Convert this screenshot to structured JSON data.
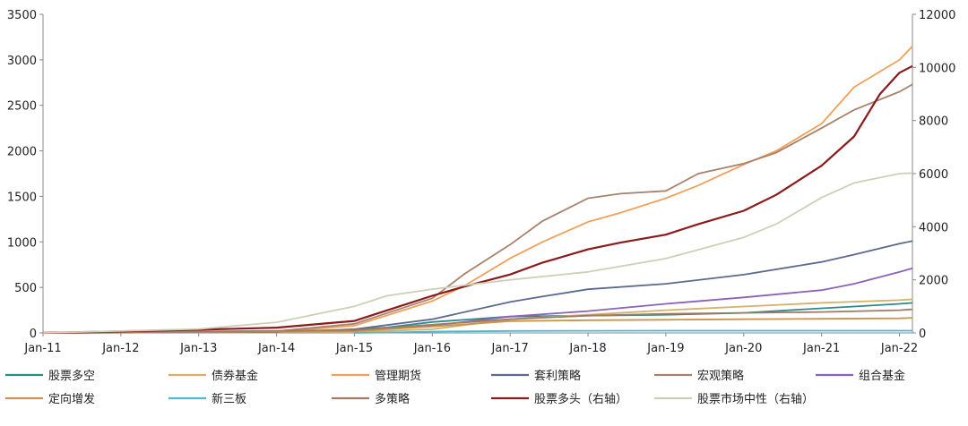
{
  "chart_data": {
    "type": "line",
    "title": "",
    "xlabel": "",
    "ylabel": "",
    "ylabel_right": "",
    "x_ticks": [
      "Jan-11",
      "Jan-12",
      "Jan-13",
      "Jan-14",
      "Jan-15",
      "Jan-16",
      "Jan-17",
      "Jan-18",
      "Jan-19",
      "Jan-20",
      "Jan-21",
      "Jan-22"
    ],
    "xlim": [
      "2011-01",
      "2022-03"
    ],
    "ylim_left": [
      0,
      3500
    ],
    "ylim_right": [
      0,
      12000
    ],
    "y_ticks_left": [
      "0",
      "500",
      "1000",
      "1500",
      "2000",
      "2500",
      "3000",
      "3500"
    ],
    "y_ticks_right": [
      "0",
      "2000",
      "4000",
      "6000",
      "8000",
      "10000",
      "12000"
    ],
    "legend_position": "bottom",
    "series": [
      {
        "name": "股票多空",
        "axis": "left",
        "color": "#2e8a8a",
        "points": [
          [
            "2011-01",
            2
          ],
          [
            "2014-06",
            10
          ],
          [
            "2015-06",
            60
          ],
          [
            "2016-01",
            120
          ],
          [
            "2017-01",
            180
          ],
          [
            "2018-01",
            190
          ],
          [
            "2019-01",
            200
          ],
          [
            "2020-01",
            220
          ],
          [
            "2021-01",
            270
          ],
          [
            "2021-06",
            290
          ],
          [
            "2022-01",
            320
          ],
          [
            "2022-03",
            330
          ]
        ]
      },
      {
        "name": "债券基金",
        "axis": "left",
        "color": "#d4b06a",
        "points": [
          [
            "2011-01",
            2
          ],
          [
            "2015-01",
            10
          ],
          [
            "2016-01",
            40
          ],
          [
            "2017-01",
            150
          ],
          [
            "2018-01",
            200
          ],
          [
            "2019-01",
            250
          ],
          [
            "2020-01",
            290
          ],
          [
            "2021-01",
            330
          ],
          [
            "2022-01",
            360
          ],
          [
            "2022-03",
            370
          ]
        ]
      },
      {
        "name": "管理期货",
        "axis": "left",
        "color": "#f0a05a",
        "points": [
          [
            "2011-01",
            0
          ],
          [
            "2014-01",
            10
          ],
          [
            "2015-01",
            80
          ],
          [
            "2016-01",
            350
          ],
          [
            "2016-06",
            520
          ],
          [
            "2017-01",
            820
          ],
          [
            "2017-06",
            1000
          ],
          [
            "2018-01",
            1220
          ],
          [
            "2018-06",
            1320
          ],
          [
            "2019-01",
            1480
          ],
          [
            "2019-06",
            1620
          ],
          [
            "2020-01",
            1850
          ],
          [
            "2020-06",
            2000
          ],
          [
            "2021-01",
            2300
          ],
          [
            "2021-06",
            2700
          ],
          [
            "2022-01",
            3000
          ],
          [
            "2022-03",
            3150
          ]
        ]
      },
      {
        "name": "套利策略",
        "axis": "left",
        "color": "#5a6a8e",
        "points": [
          [
            "2011-01",
            0
          ],
          [
            "2014-01",
            10
          ],
          [
            "2015-01",
            40
          ],
          [
            "2016-01",
            150
          ],
          [
            "2017-01",
            340
          ],
          [
            "2017-06",
            400
          ],
          [
            "2018-01",
            480
          ],
          [
            "2019-01",
            540
          ],
          [
            "2020-01",
            640
          ],
          [
            "2021-01",
            780
          ],
          [
            "2021-06",
            860
          ],
          [
            "2022-01",
            980
          ],
          [
            "2022-03",
            1010
          ]
        ]
      },
      {
        "name": "宏观策略",
        "axis": "left",
        "color": "#a8826a",
        "points": [
          [
            "2011-01",
            0
          ],
          [
            "2014-01",
            20
          ],
          [
            "2015-01",
            100
          ],
          [
            "2016-01",
            380
          ],
          [
            "2016-06",
            650
          ],
          [
            "2017-01",
            970
          ],
          [
            "2017-06",
            1230
          ],
          [
            "2018-01",
            1480
          ],
          [
            "2018-06",
            1530
          ],
          [
            "2019-01",
            1560
          ],
          [
            "2019-06",
            1750
          ],
          [
            "2020-01",
            1860
          ],
          [
            "2020-06",
            1980
          ],
          [
            "2021-01",
            2250
          ],
          [
            "2021-06",
            2450
          ],
          [
            "2022-01",
            2650
          ],
          [
            "2022-03",
            2730
          ]
        ]
      },
      {
        "name": "组合基金",
        "axis": "left",
        "color": "#8a62b8",
        "points": [
          [
            "2011-01",
            0
          ],
          [
            "2015-01",
            20
          ],
          [
            "2016-01",
            80
          ],
          [
            "2017-01",
            180
          ],
          [
            "2018-01",
            240
          ],
          [
            "2019-01",
            320
          ],
          [
            "2020-01",
            390
          ],
          [
            "2021-01",
            470
          ],
          [
            "2021-06",
            540
          ],
          [
            "2022-01",
            670
          ],
          [
            "2022-03",
            710
          ]
        ]
      },
      {
        "name": "定向增发",
        "axis": "left",
        "color": "#c8954a",
        "points": [
          [
            "2011-01",
            0
          ],
          [
            "2015-01",
            20
          ],
          [
            "2016-01",
            70
          ],
          [
            "2017-01",
            130
          ],
          [
            "2018-01",
            140
          ],
          [
            "2019-01",
            145
          ],
          [
            "2020-01",
            150
          ],
          [
            "2021-01",
            155
          ],
          [
            "2022-01",
            160
          ],
          [
            "2022-03",
            165
          ]
        ]
      },
      {
        "name": "新三板",
        "axis": "left",
        "color": "#4ab8d8",
        "points": [
          [
            "2015-01",
            0
          ],
          [
            "2015-06",
            5
          ],
          [
            "2016-01",
            15
          ],
          [
            "2017-01",
            22
          ],
          [
            "2018-01",
            24
          ],
          [
            "2019-01",
            25
          ],
          [
            "2020-01",
            25
          ],
          [
            "2021-01",
            25
          ],
          [
            "2022-03",
            25
          ]
        ]
      },
      {
        "name": "多策略",
        "axis": "left",
        "color": "#a07a62",
        "points": [
          [
            "2011-01",
            0
          ],
          [
            "2015-01",
            30
          ],
          [
            "2016-01",
            90
          ],
          [
            "2017-01",
            150
          ],
          [
            "2018-01",
            190
          ],
          [
            "2019-01",
            210
          ],
          [
            "2020-01",
            220
          ],
          [
            "2021-01",
            230
          ],
          [
            "2022-01",
            250
          ],
          [
            "2022-03",
            260
          ]
        ]
      },
      {
        "name": "股票多头（右轴）",
        "axis": "right",
        "color": "#8b1a1a",
        "points": [
          [
            "2011-01",
            0
          ],
          [
            "2013-01",
            120
          ],
          [
            "2014-01",
            200
          ],
          [
            "2015-01",
            450
          ],
          [
            "2015-06",
            850
          ],
          [
            "2016-01",
            1400
          ],
          [
            "2016-06",
            1750
          ],
          [
            "2017-01",
            2200
          ],
          [
            "2017-06",
            2650
          ],
          [
            "2018-01",
            3150
          ],
          [
            "2018-06",
            3400
          ],
          [
            "2019-01",
            3700
          ],
          [
            "2019-06",
            4100
          ],
          [
            "2020-01",
            4600
          ],
          [
            "2020-06",
            5200
          ],
          [
            "2021-01",
            6300
          ],
          [
            "2021-06",
            7400
          ],
          [
            "2021-10",
            9000
          ],
          [
            "2022-01",
            9800
          ],
          [
            "2022-03",
            10050
          ]
        ]
      },
      {
        "name": "股票市场中性（右轴）",
        "axis": "right",
        "color": "#cfcfb8",
        "points": [
          [
            "2011-01",
            0
          ],
          [
            "2013-01",
            150
          ],
          [
            "2014-01",
            400
          ],
          [
            "2015-01",
            1000
          ],
          [
            "2015-06",
            1400
          ],
          [
            "2016-01",
            1650
          ],
          [
            "2017-01",
            2000
          ],
          [
            "2018-01",
            2300
          ],
          [
            "2019-01",
            2800
          ],
          [
            "2020-01",
            3600
          ],
          [
            "2020-06",
            4100
          ],
          [
            "2021-01",
            5100
          ],
          [
            "2021-06",
            5650
          ],
          [
            "2022-01",
            6000
          ],
          [
            "2022-03",
            6020
          ]
        ]
      }
    ]
  }
}
